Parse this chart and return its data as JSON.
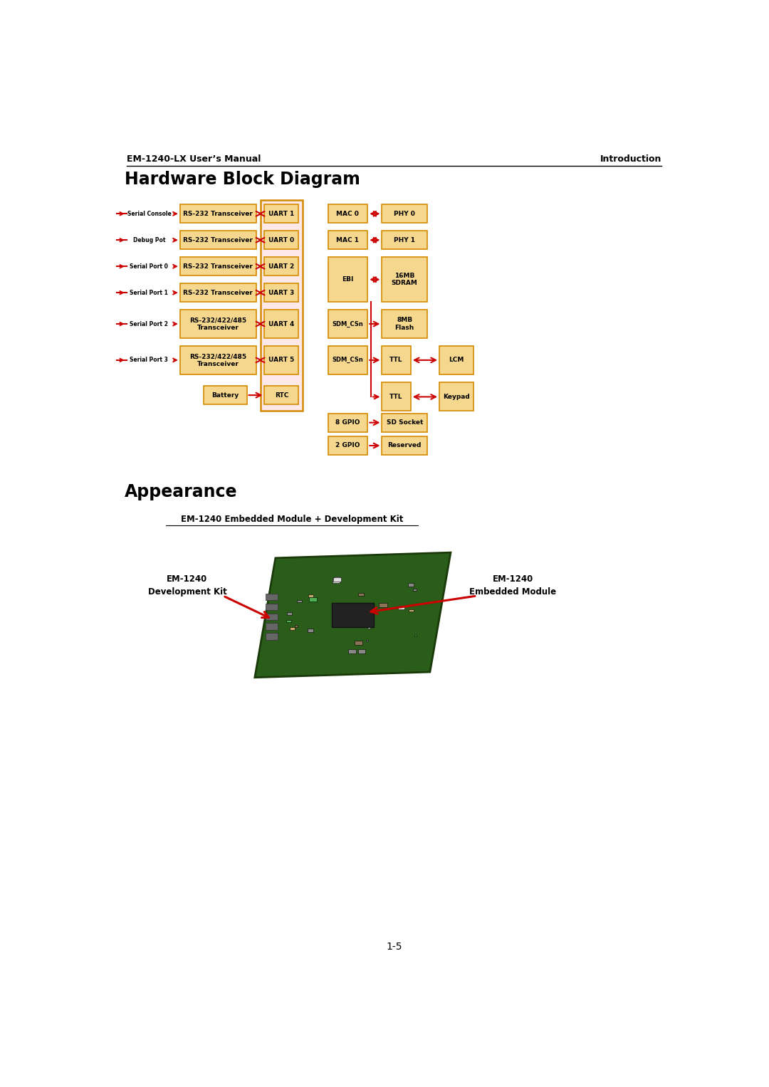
{
  "page_title_left": "EM-1240-LX User’s Manual",
  "page_title_right": "Introduction",
  "section1_title": "Hardware Block Diagram",
  "section2_title": "Appearance",
  "subsection_title": "EM-1240 Embedded Module + Development Kit",
  "label_left_line1": "EM-1240",
  "label_left_line2": "Development Kit",
  "label_right_line1": "EM-1240",
  "label_right_line2": "Embedded Module",
  "page_number": "1-5",
  "box_fill": "#F5D78E",
  "box_edge": "#D48A00",
  "cpu_fill": "#FFE8E8",
  "cpu_edge": "#D48A00",
  "arrow_color": "#CC0000",
  "text_color": "#000000",
  "bg_color": "#FFFFFF",
  "left_labels": [
    "Serial Console",
    "Debug Pot",
    "Serial Port 0",
    "Serial Port 1",
    "Serial Port 2",
    "Serial Port 3"
  ],
  "transceiver_boxes": [
    "RS-232 Transceiver",
    "RS-232 Transceiver",
    "RS-232 Transceiver",
    "RS-232 Transceiver",
    "RS-232/422/485\nTransceiver",
    "RS-232/422/485\nTransceiver"
  ],
  "uart_boxes": [
    "UART 1",
    "UART 0",
    "UART 2",
    "UART 3",
    "UART 4",
    "UART 5"
  ],
  "battery_box": "Battery",
  "rtc_box": "RTC"
}
